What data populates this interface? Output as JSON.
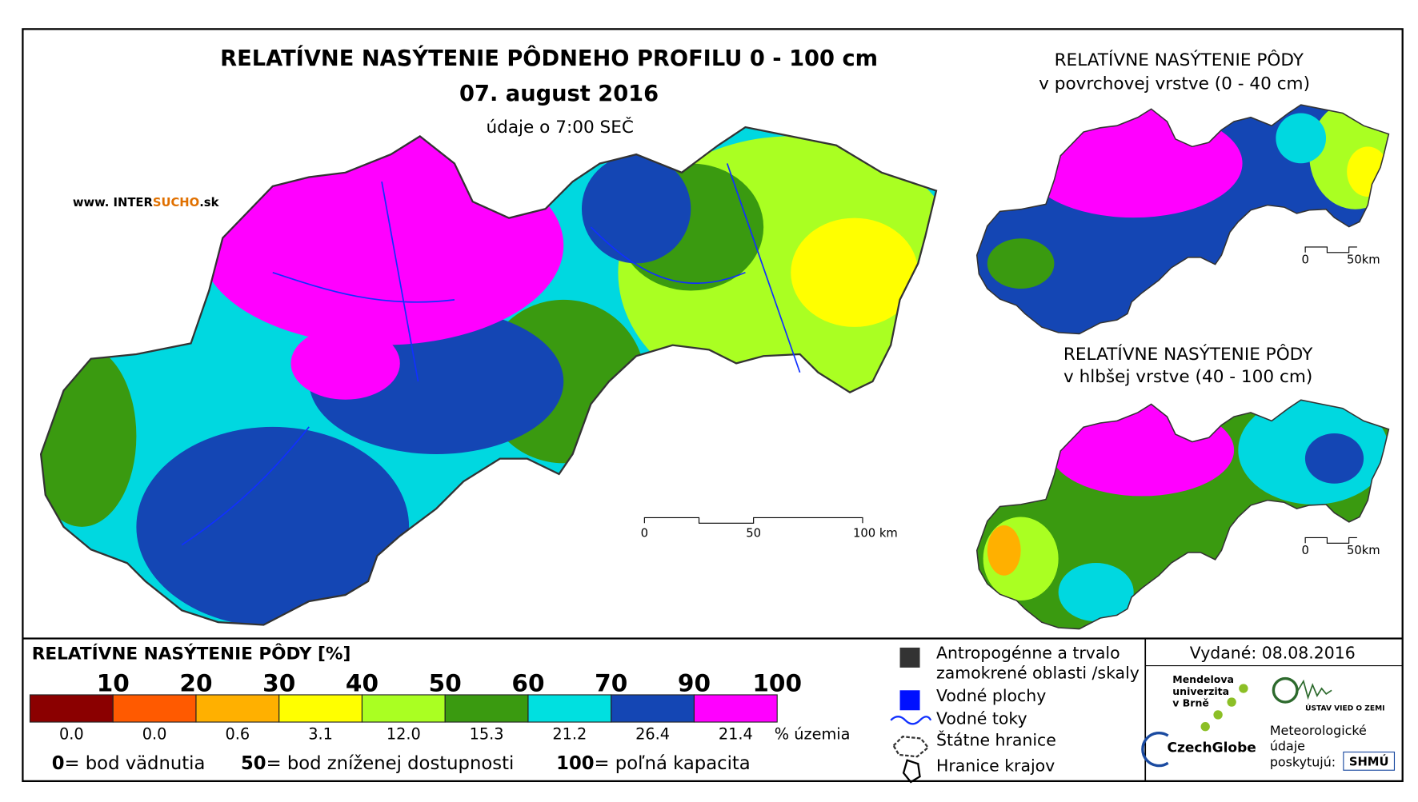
{
  "title": "RELATÍVNE NASÝTENIE PÔDNEHO PROFILU 0 - 100 cm",
  "date": "07. august 2016",
  "data_time": "údaje o 7:00 SEČ",
  "website": {
    "prefix": "www. INTER",
    "highlight": "SUCHO",
    "suffix": ".sk"
  },
  "main_scale": [
    "0",
    "50",
    "100 km"
  ],
  "inset_surface": {
    "title_line1": "RELATÍVNE NASÝTENIE PÔDY",
    "title_line2": "v povrchovej vrstve (0 - 40 cm)",
    "scale": [
      "0",
      "50km"
    ]
  },
  "inset_deep": {
    "title_line1": "RELATÍVNE NASÝTENIE PÔDY",
    "title_line2": "v hlbšej vrstve (40 - 100 cm)",
    "scale": [
      "0",
      "50km"
    ]
  },
  "legend": {
    "title": "RELATÍVNE NASÝTENIE PÔDY [%]",
    "breakpoints": [
      "10",
      "20",
      "30",
      "40",
      "50",
      "60",
      "70",
      "90",
      "100"
    ],
    "classes": [
      {
        "color": "#8b0000",
        "share": "0.0"
      },
      {
        "color": "#ff5a00",
        "share": "0.0"
      },
      {
        "color": "#ffb000",
        "share": "0.6"
      },
      {
        "color": "#ffff00",
        "share": "3.1"
      },
      {
        "color": "#aaff22",
        "share": "12.0"
      },
      {
        "color": "#3a9a10",
        "share": "15.3"
      },
      {
        "color": "#00e0e0",
        "share": "21.2"
      },
      {
        "color": "#1446b4",
        "share": "26.4"
      },
      {
        "color": "#ff00ff",
        "share": "21.4"
      }
    ],
    "share_unit": "% územia",
    "notes": [
      {
        "key": "0",
        "text": "= bod vädnutia"
      },
      {
        "key": "50",
        "text": "= bod zníženej dostupnosti"
      },
      {
        "key": "100",
        "text": "= poľná kapacita"
      }
    ]
  },
  "symbols": [
    {
      "lines": [
        "Antropogénne a trvalo",
        "zamokrené oblasti /skaly"
      ]
    },
    {
      "lines": [
        "Vodné plochy"
      ]
    },
    {
      "lines": [
        "Vodné toky"
      ]
    },
    {
      "lines": [
        "Štátne hranice"
      ]
    },
    {
      "lines": [
        "Hranice krajov"
      ]
    }
  ],
  "issued": "Vydané: 08.08.2016",
  "logos": {
    "mendelu": [
      "Mendelova",
      "univerzita",
      "v Brně"
    ],
    "czechglobe": "CzechGlobe",
    "ustav": "ÚSTAV VIED O ZEMI",
    "provider": [
      "Meteorologické",
      "údaje",
      "poskytujú:"
    ],
    "shmu": "SHMÚ"
  }
}
